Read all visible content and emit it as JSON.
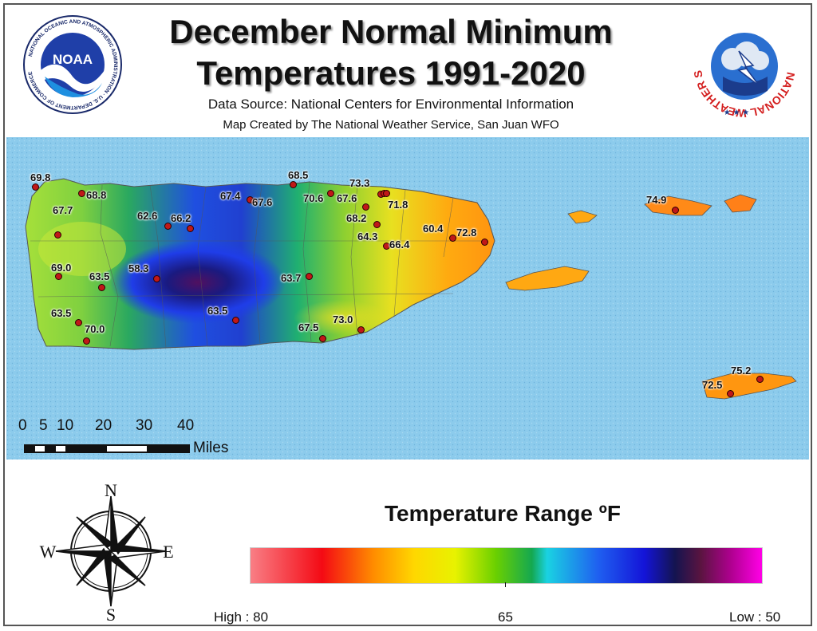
{
  "title_line1": "December Normal Minimum",
  "title_line2": "Temperatures 1991-2020",
  "data_source": "Data Source: National Centers for Environmental Information",
  "credit": "Map Created by The National Weather Service, San Juan WFO",
  "logos": {
    "noaa": {
      "center_text": "NOAA",
      "ring_text": "NATIONAL OCEANIC AND ATMOSPHERIC ADMINISTRATION · U.S. DEPARTMENT OF COMMERCE"
    },
    "nws": {
      "ring_text": "NATIONAL WEATHER SERVICE"
    }
  },
  "stations": [
    {
      "value": "69.8"
    },
    {
      "value": "68.8"
    },
    {
      "value": "67.7"
    },
    {
      "value": "62.6"
    },
    {
      "value": "66.2"
    },
    {
      "value": "67.4"
    },
    {
      "value": "67.6"
    },
    {
      "value": "68.5"
    },
    {
      "value": "70.6"
    },
    {
      "value": "67.6"
    },
    {
      "value": "73.3"
    },
    {
      "value": "71.8"
    },
    {
      "value": "68.2"
    },
    {
      "value": "64.3"
    },
    {
      "value": "66.4"
    },
    {
      "value": "60.4"
    },
    {
      "value": "72.8"
    },
    {
      "value": "69.0"
    },
    {
      "value": "63.5"
    },
    {
      "value": "58.3"
    },
    {
      "value": "63.7"
    },
    {
      "value": "63.5"
    },
    {
      "value": "63.5"
    },
    {
      "value": "70.0"
    },
    {
      "value": "67.5"
    },
    {
      "value": "73.0"
    },
    {
      "value": "74.9"
    },
    {
      "value": "75.2"
    },
    {
      "value": "72.5"
    }
  ],
  "scale_bar": {
    "ticks": [
      "0",
      "5",
      "10",
      "20",
      "30",
      "40"
    ],
    "unit": "Miles"
  },
  "compass": {
    "n": "N",
    "s": "S",
    "e": "E",
    "w": "W"
  },
  "legend": {
    "title": "Temperature Range ºF",
    "high_label": "High : 80",
    "mid_label": "65",
    "low_label": "Low : 50",
    "colors": [
      "#f97e85",
      "#f40a14",
      "#ff8c00",
      "#ffd700",
      "#e8f200",
      "#6ad000",
      "#14a850",
      "#1ad2e2",
      "#1f5ff0",
      "#1414d8",
      "#141450",
      "#5a1440",
      "#b00090",
      "#ff00e6"
    ]
  },
  "colors": {
    "ocean": "#8ccbec",
    "station_dot": "#c01818"
  }
}
